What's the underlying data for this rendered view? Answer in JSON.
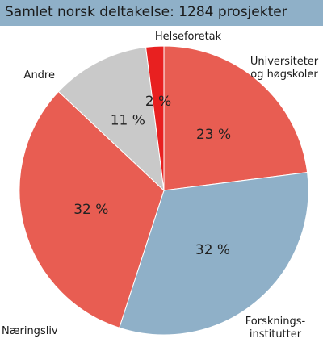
{
  "title": "Samlet norsk deltakelse: 1284 prosjekter",
  "chart_data": {
    "type": "pie",
    "title": "Samlet norsk deltakelse: 1284 prosjekter",
    "categories": [
      "Universiteter og høgskoler",
      "Forskningsinstitutter",
      "Næringsliv",
      "Andre",
      "Helseforetak"
    ],
    "labels": [
      [
        "Universiteter",
        "og høgskoler"
      ],
      [
        "Forsknings-",
        "institutter"
      ],
      [
        "Næringsliv"
      ],
      [
        "Andre"
      ],
      [
        "Helseforetak"
      ]
    ],
    "values": [
      23,
      32,
      32,
      11,
      2
    ],
    "value_labels": [
      "23 %",
      "32 %",
      "32 %",
      "11 %",
      "2 %"
    ],
    "colors": [
      "#e85d52",
      "#8fb0c8",
      "#e85d52",
      "#c9c9c9",
      "#e82020"
    ],
    "start_angle_deg": 0,
    "direction": "clockwise"
  }
}
